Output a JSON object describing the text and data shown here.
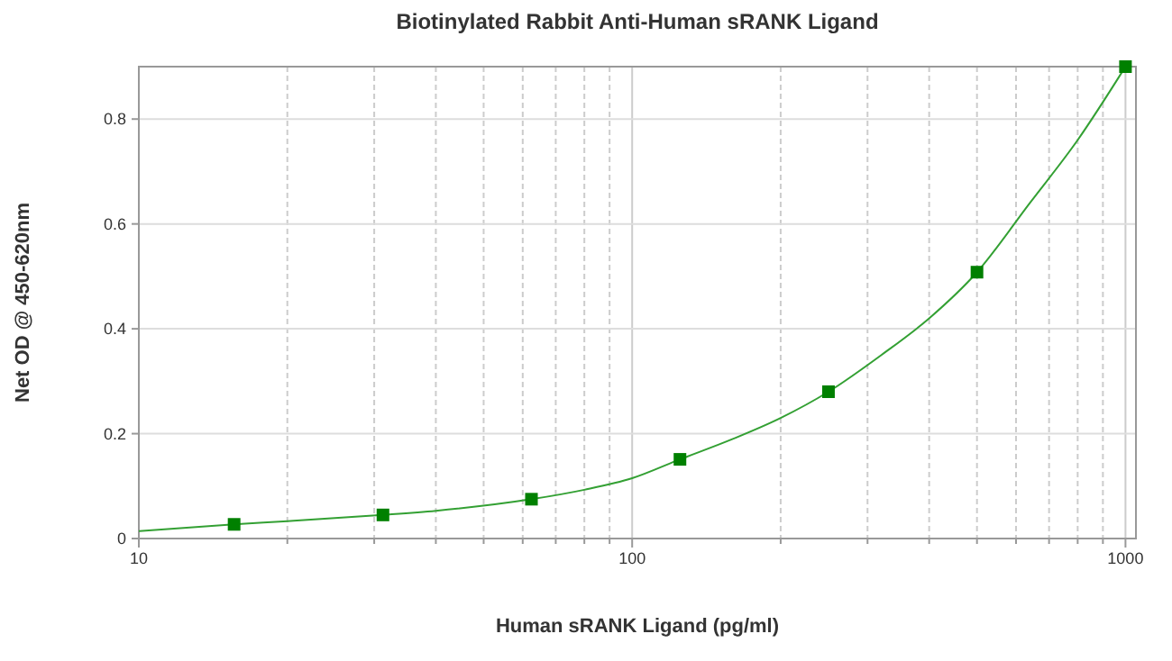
{
  "chart_data": {
    "type": "scatter",
    "title": "Biotinylated Rabbit Anti-Human sRANK Ligand",
    "xlabel": "Human sRANK Ligand (pg/ml)",
    "ylabel": "Net OD @ 450-620nm",
    "log": "x",
    "grid": true,
    "xlim": [
      10,
      1050
    ],
    "ylim": [
      0,
      0.9
    ],
    "xticks": [
      10,
      {
        "value": 20,
        "label": null
      },
      {
        "value": 30,
        "label": null
      },
      {
        "value": 40,
        "label": null
      },
      {
        "value": 50,
        "label": null
      },
      {
        "value": 60,
        "label": null
      },
      {
        "value": 70,
        "label": null
      },
      {
        "value": 80,
        "label": null
      },
      {
        "value": 90,
        "label": null
      },
      100,
      {
        "value": 200,
        "label": null
      },
      {
        "value": 300,
        "label": null
      },
      {
        "value": 400,
        "label": null
      },
      {
        "value": 500,
        "label": null
      },
      {
        "value": 600,
        "label": null
      },
      {
        "value": 700,
        "label": null
      },
      {
        "value": 800,
        "label": null
      },
      {
        "value": 900,
        "label": null
      },
      1000
    ],
    "yticks": [
      0,
      0.2,
      0.4,
      0.6,
      0.8
    ],
    "series": [
      {
        "type": "line",
        "color": "#33a033",
        "line_style": "solid",
        "marker": "none",
        "x": [
          10,
          15.6,
          20,
          31.25,
          40,
          62.5,
          80,
          100,
          125,
          160,
          200,
          250,
          320,
          400,
          500,
          640,
          800,
          1000
        ],
        "values": [
          0.014,
          0.027,
          0.033,
          0.045,
          0.053,
          0.075,
          0.093,
          0.115,
          0.151,
          0.19,
          0.23,
          0.28,
          0.35,
          0.42,
          0.508,
          0.64,
          0.76,
          0.9
        ]
      },
      {
        "color": "#008000",
        "marker": "square",
        "x": [
          15.6,
          31.25,
          62.5,
          125,
          250,
          500,
          1000
        ],
        "values": [
          0.027,
          0.045,
          0.075,
          0.151,
          0.28,
          0.508,
          0.9
        ]
      }
    ]
  }
}
